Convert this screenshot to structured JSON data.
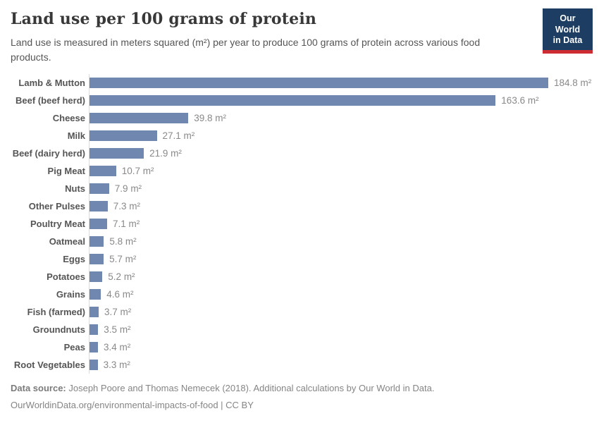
{
  "header": {
    "title": "Land use per 100 grams of protein",
    "subtitle": "Land use is measured in meters squared (m²) per year to produce 100 grams of protein across various food products.",
    "logo": {
      "line1": "Our World",
      "line2": "in Data"
    }
  },
  "chart_data": {
    "type": "bar",
    "orientation": "horizontal",
    "title": "Land use per 100 grams of protein",
    "unit": "m²",
    "categories": [
      "Lamb & Mutton",
      "Beef (beef herd)",
      "Cheese",
      "Milk",
      "Beef (dairy herd)",
      "Pig Meat",
      "Nuts",
      "Other Pulses",
      "Poultry Meat",
      "Oatmeal",
      "Eggs",
      "Potatoes",
      "Grains",
      "Fish (farmed)",
      "Groundnuts",
      "Peas",
      "Root Vegetables"
    ],
    "values": [
      184.8,
      163.6,
      39.8,
      27.1,
      21.9,
      10.7,
      7.9,
      7.3,
      7.1,
      5.8,
      5.7,
      5.2,
      4.6,
      3.7,
      3.5,
      3.4,
      3.3
    ],
    "xlim": [
      0,
      184.8
    ],
    "grid": false,
    "value_labels": true,
    "legend": "none"
  },
  "colors": {
    "bar": "#7087b0",
    "axis_line": "#dbdbdb",
    "logo_bg": "#1d3d63",
    "logo_red": "#cd2d32",
    "category_label": "#555555",
    "value_label": "#898989"
  },
  "footer": {
    "source_label": "Data source:",
    "source_text": " Joseph Poore and Thomas Nemecek (2018). Additional calculations by Our World in Data.",
    "url_text": "OurWorldinData.org/environmental-impacts-of-food | CC BY"
  }
}
